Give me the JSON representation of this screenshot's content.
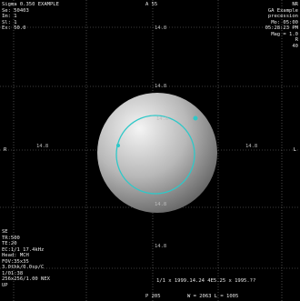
{
  "overlay": {
    "top_left": [
      "Sigma 0.350 EXAMPLE",
      "Se: 50403",
      "Im: 1",
      "Sl: 1",
      "Ex: 50.0"
    ],
    "top_center": "A 55",
    "top_right": [
      "NR",
      "GA Example",
      "precession",
      "Mo: 05:00",
      "05:28:23 PM",
      "Mag = 1.0",
      "R",
      "40"
    ],
    "bottom_left": [
      "SE",
      "TR:500",
      "TE:20",
      "EC:1/1 17.4kHz",
      "Head: MCH",
      "FOV:35x35",
      "3.0thk/0.0sp/C",
      "1/01:38",
      "256x256/1.00 NEX",
      "UP"
    ],
    "bottom_center": "P 205",
    "bottom_info": "1/1 x 1999.14.24 4E5.25 x 1995.??",
    "window_level": "W = 2063 L = 1005",
    "grid_labels": [
      "14.8",
      "14.8",
      "14.8",
      "14.8",
      "14.8",
      "14.8",
      "14.8"
    ],
    "left_label": "R",
    "right_label": "L"
  }
}
